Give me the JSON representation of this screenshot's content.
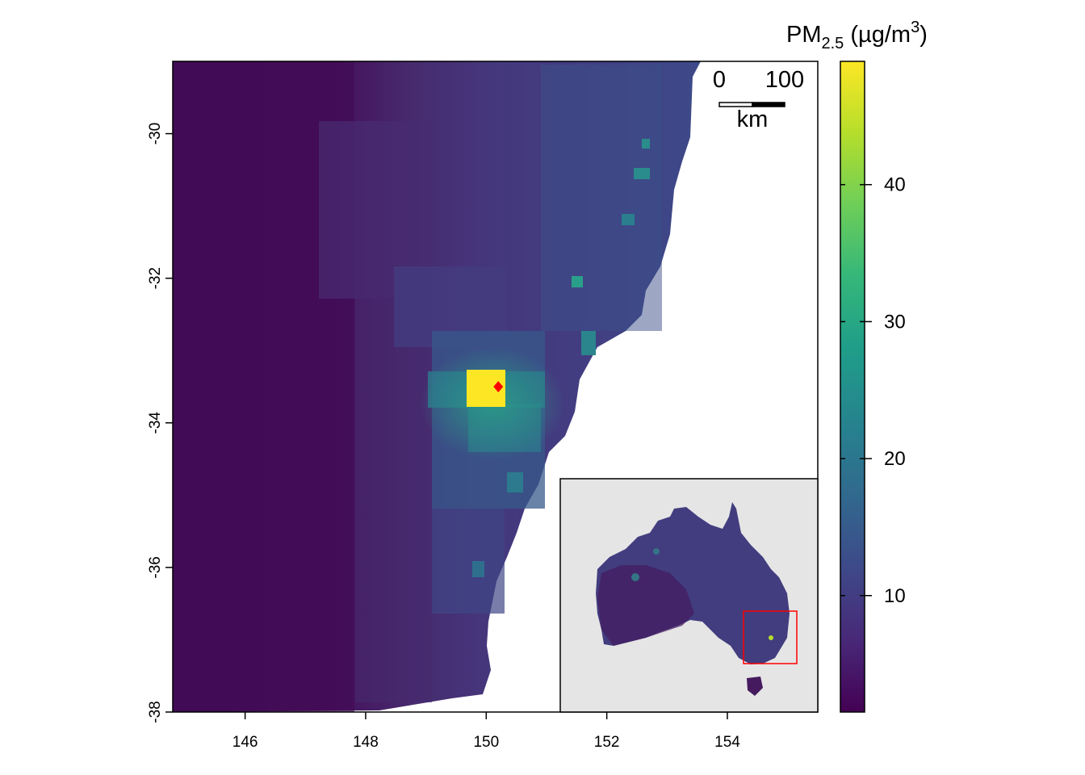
{
  "map": {
    "x_axis": {
      "ticks": [
        146,
        148,
        150,
        152,
        154
      ],
      "range": [
        144.8,
        155.5
      ]
    },
    "y_axis": {
      "ticks": [
        -30,
        -32,
        -34,
        -36,
        -38
      ],
      "range": [
        -38,
        -29
      ]
    },
    "marker": {
      "lon": 150.2,
      "lat": -33.5,
      "color": "#ff0000"
    },
    "scale_bar": {
      "start_label": "0",
      "end_label": "100",
      "unit": "km"
    }
  },
  "legend": {
    "title_main": "PM",
    "title_sub": "2.5",
    "title_unit_prefix": " (µg/m",
    "title_unit_sup": "3",
    "title_unit_suffix": ")",
    "range": [
      1.5,
      49
    ],
    "ticks": [
      10,
      20,
      30,
      40
    ]
  },
  "inset": {
    "background": "#e5e5e5",
    "highlight_color": "#ff0000"
  },
  "colors": {
    "viridis": [
      "#440154",
      "#482878",
      "#3e4989",
      "#31688e",
      "#26828e",
      "#1f9e89",
      "#35b779",
      "#6ece58",
      "#b5de2b",
      "#fde725"
    ]
  }
}
